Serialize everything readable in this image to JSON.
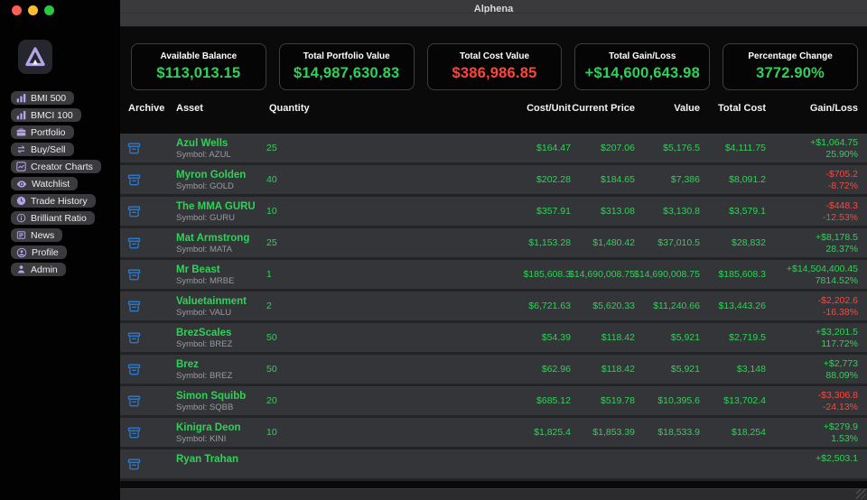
{
  "window": {
    "title": "Alphena",
    "controls": [
      {
        "name": "close",
        "color": "#ff5f57"
      },
      {
        "name": "minimize",
        "color": "#febc2e"
      },
      {
        "name": "zoom",
        "color": "#28c840"
      }
    ]
  },
  "colors": {
    "positive": "#30d158",
    "negative": "#ff453a",
    "accent_lavender": "#b4a3e6",
    "archive_blue": "#2c78c8",
    "row_background": "#343539",
    "titlebar": "#3a3a3c"
  },
  "sidebar": {
    "logo_icon": "alphena-logo",
    "items": [
      {
        "label": "BMI 500",
        "icon": "bar-chart-icon"
      },
      {
        "label": "BMCI 100",
        "icon": "bar-chart-icon"
      },
      {
        "label": "Portfolio",
        "icon": "briefcase-icon"
      },
      {
        "label": "Buy/Sell",
        "icon": "swap-arrows-icon"
      },
      {
        "label": "Creator Charts",
        "icon": "line-chart-icon"
      },
      {
        "label": "Watchlist",
        "icon": "eye-icon"
      },
      {
        "label": "Trade History",
        "icon": "clock-icon"
      },
      {
        "label": "Brilliant Ratio",
        "icon": "info-circle-icon"
      },
      {
        "label": "News",
        "icon": "news-icon"
      },
      {
        "label": "Profile",
        "icon": "profile-icon"
      },
      {
        "label": "Admin",
        "icon": "person-icon"
      }
    ]
  },
  "cards": [
    {
      "label": "Available Balance",
      "value": "$113,013.15",
      "trend": "up"
    },
    {
      "label": "Total Portfolio Value",
      "value": "$14,987,630.83",
      "trend": "up"
    },
    {
      "label": "Total Cost Value",
      "value": "$386,986.85",
      "trend": "down"
    },
    {
      "label": "Total Gain/Loss",
      "value": "+$14,600,643.98",
      "trend": "up"
    },
    {
      "label": "Percentage Change",
      "value": "3772.90%",
      "trend": "up"
    }
  ],
  "table": {
    "headers": [
      "Archive",
      "Asset",
      "Quantity",
      "Cost/Unit",
      "Current Price",
      "Value",
      "Total Cost",
      "Gain/Loss"
    ],
    "rows": [
      {
        "name": "Azul Wells",
        "symbol": "Symbol: AZUL",
        "quantity": "25",
        "cost_unit": "$164.47",
        "current_price": "$207.06",
        "value": "$5,176.5",
        "total_cost": "$4,111.75",
        "gain": "+$1,064.75",
        "gain_pct": "25.90%",
        "trend": "up",
        "archive_icon": "archive-icon"
      },
      {
        "name": "Myron Golden",
        "symbol": "Symbol: GOLD",
        "quantity": "40",
        "cost_unit": "$202.28",
        "current_price": "$184.65",
        "value": "$7,386",
        "total_cost": "$8,091.2",
        "gain": "-$705.2",
        "gain_pct": "-8.72%",
        "trend": "down",
        "archive_icon": "archive-icon"
      },
      {
        "name": "The MMA GURU",
        "symbol": "Symbol: GURU",
        "quantity": "10",
        "cost_unit": "$357.91",
        "current_price": "$313.08",
        "value": "$3,130.8",
        "total_cost": "$3,579.1",
        "gain": "-$448.3",
        "gain_pct": "-12.53%",
        "trend": "down",
        "archive_icon": "archive-icon"
      },
      {
        "name": "Mat Armstrong",
        "symbol": "Symbol: MATA",
        "quantity": "25",
        "cost_unit": "$1,153.28",
        "current_price": "$1,480.42",
        "value": "$37,010.5",
        "total_cost": "$28,832",
        "gain": "+$8,178.5",
        "gain_pct": "28.37%",
        "trend": "up",
        "archive_icon": "archive-icon"
      },
      {
        "name": "Mr Beast",
        "symbol": "Symbol: MRBE",
        "quantity": "1",
        "cost_unit": "$185,608.3",
        "current_price": "$14,690,008.75",
        "value": "$14,690,008.75",
        "total_cost": "$185,608.3",
        "gain": "+$14,504,400.45",
        "gain_pct": "7814.52%",
        "trend": "up",
        "archive_icon": "archive-icon"
      },
      {
        "name": "Valuetainment",
        "symbol": "Symbol: VALU",
        "quantity": "2",
        "cost_unit": "$6,721.63",
        "current_price": "$5,620.33",
        "value": "$11,240.66",
        "total_cost": "$13,443.26",
        "gain": "-$2,202.6",
        "gain_pct": "-16.38%",
        "trend": "down",
        "archive_icon": "archive-icon"
      },
      {
        "name": "BrezScales",
        "symbol": "Symbol: BREZ",
        "quantity": "50",
        "cost_unit": "$54.39",
        "current_price": "$118.42",
        "value": "$5,921",
        "total_cost": "$2,719.5",
        "gain": "+$3,201.5",
        "gain_pct": "117.72%",
        "trend": "up",
        "archive_icon": "archive-icon"
      },
      {
        "name": "Brez",
        "symbol": "Symbol: BREZ",
        "quantity": "50",
        "cost_unit": "$62.96",
        "current_price": "$118.42",
        "value": "$5,921",
        "total_cost": "$3,148",
        "gain": "+$2,773",
        "gain_pct": "88.09%",
        "trend": "up",
        "archive_icon": "archive-icon"
      },
      {
        "name": "Simon Squibb",
        "symbol": "Symbol: SQBB",
        "quantity": "20",
        "cost_unit": "$685.12",
        "current_price": "$519.78",
        "value": "$10,395.6",
        "total_cost": "$13,702.4",
        "gain": "-$3,306.8",
        "gain_pct": "-24.13%",
        "trend": "down",
        "archive_icon": "archive-icon"
      },
      {
        "name": "Kinigra Deon",
        "symbol": "Symbol: KINI",
        "quantity": "10",
        "cost_unit": "$1,825.4",
        "current_price": "$1,853.39",
        "value": "$18,533.9",
        "total_cost": "$18,254",
        "gain": "+$279.9",
        "gain_pct": "1.53%",
        "trend": "up",
        "archive_icon": "archive-icon"
      },
      {
        "name": "Ryan Trahan",
        "symbol": "",
        "quantity": "",
        "cost_unit": "",
        "current_price": "",
        "value": "",
        "total_cost": "",
        "gain": "+$2,503.1",
        "gain_pct": "",
        "trend": "up",
        "archive_icon": "archive-icon"
      }
    ]
  }
}
